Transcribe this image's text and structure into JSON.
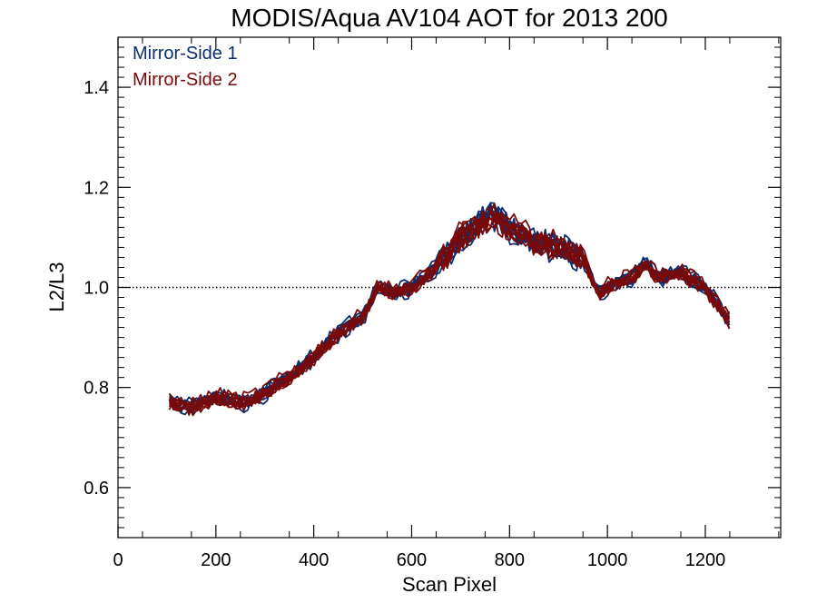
{
  "chart_data": {
    "type": "line",
    "title": "MODIS/Aqua AV104 AOT for 2013 200",
    "xlabel": "Scan Pixel",
    "ylabel": "L2/L3",
    "xlim": [
      0,
      1354
    ],
    "ylim": [
      0.5,
      1.5
    ],
    "xticks": [
      "0",
      "200",
      "400",
      "600",
      "800",
      "1000",
      "1200"
    ],
    "xtick_values": [
      0,
      200,
      400,
      600,
      800,
      1000,
      1200
    ],
    "yticks": [
      "0.6",
      "0.8",
      "1.0",
      "1.2",
      "1.4"
    ],
    "ytick_values": [
      0.6,
      0.8,
      1.0,
      1.2,
      1.4
    ],
    "reference_line": {
      "y": 1.0,
      "style": "dotted"
    },
    "grid": false,
    "legend_position": "top-left",
    "series_colors": {
      "Mirror-Side 1": "#0b2f6e",
      "Mirror-Side 2": "#7a0a0a"
    },
    "series": [
      {
        "name": "Mirror-Side 1",
        "x": [
          105,
          150,
          200,
          260,
          300,
          350,
          400,
          450,
          500,
          530,
          560,
          600,
          650,
          700,
          730,
          760,
          800,
          850,
          900,
          950,
          980,
          1000,
          1050,
          1080,
          1100,
          1150,
          1200,
          1250
        ],
        "values": [
          0.77,
          0.76,
          0.78,
          0.77,
          0.79,
          0.82,
          0.86,
          0.91,
          0.94,
          1.0,
          0.99,
          1.0,
          1.04,
          1.1,
          1.12,
          1.15,
          1.12,
          1.09,
          1.08,
          1.06,
          0.99,
          1.0,
          1.02,
          1.05,
          1.02,
          1.03,
          1.0,
          0.93
        ]
      },
      {
        "name": "Mirror-Side 2",
        "x": [
          105,
          150,
          200,
          260,
          300,
          350,
          400,
          450,
          500,
          530,
          560,
          600,
          650,
          700,
          730,
          760,
          800,
          850,
          900,
          950,
          980,
          1000,
          1050,
          1080,
          1100,
          1150,
          1200,
          1250
        ],
        "values": [
          0.77,
          0.76,
          0.78,
          0.77,
          0.79,
          0.82,
          0.86,
          0.91,
          0.94,
          1.0,
          0.99,
          1.0,
          1.04,
          1.1,
          1.12,
          1.14,
          1.12,
          1.09,
          1.08,
          1.06,
          0.99,
          1.0,
          1.02,
          1.05,
          1.02,
          1.03,
          1.0,
          0.93
        ]
      }
    ]
  }
}
